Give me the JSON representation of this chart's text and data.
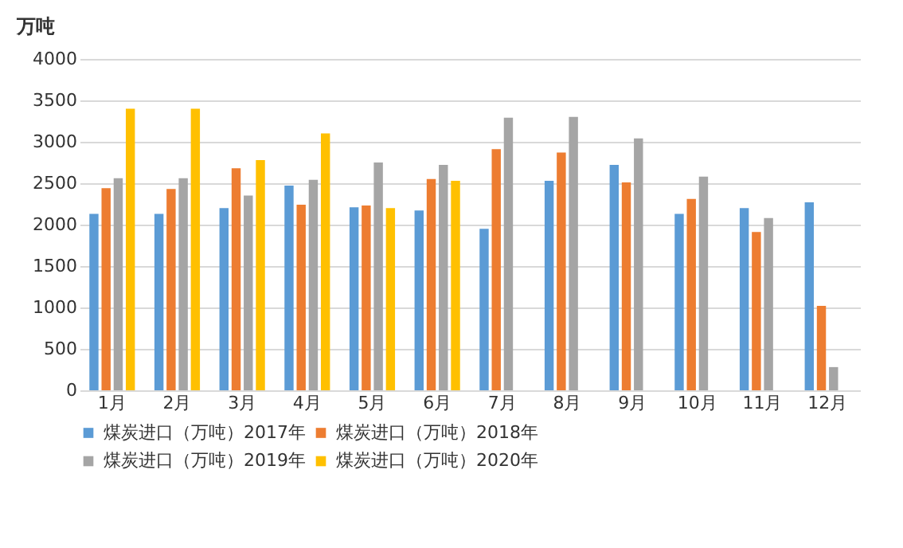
{
  "chart_data": {
    "type": "bar",
    "ylabel": "万吨",
    "categories": [
      "1月",
      "2月",
      "3月",
      "4月",
      "5月",
      "6月",
      "7月",
      "8月",
      "9月",
      "10月",
      "11月",
      "12月"
    ],
    "series": [
      {
        "name": "煤炭进口（万吨）2017年",
        "color": "#5b9bd5",
        "values": [
          2130,
          2130,
          2200,
          2470,
          2210,
          2170,
          1950,
          2530,
          2720,
          2130,
          2200,
          2270
        ]
      },
      {
        "name": "煤炭进口（万吨）2018年",
        "color": "#ed7d31",
        "values": [
          2440,
          2430,
          2680,
          2240,
          2230,
          2550,
          2910,
          2870,
          2510,
          2310,
          1910,
          1020
        ]
      },
      {
        "name": "煤炭进口（万吨）2019年",
        "color": "#a5a5a5",
        "values": [
          2560,
          2560,
          2350,
          2540,
          2750,
          2720,
          3290,
          3300,
          3040,
          2580,
          2080,
          280
        ]
      },
      {
        "name": "煤炭进口（万吨）2020年",
        "color": "#ffc000",
        "values": [
          3400,
          3400,
          2780,
          3100,
          2200,
          2530,
          null,
          null,
          null,
          null,
          null,
          null
        ]
      }
    ],
    "ylim": [
      0,
      4000
    ],
    "yticks": [
      0,
      500,
      1000,
      1500,
      2000,
      2500,
      3000,
      3500,
      4000
    ],
    "grid": "y",
    "legend": "bottom"
  }
}
